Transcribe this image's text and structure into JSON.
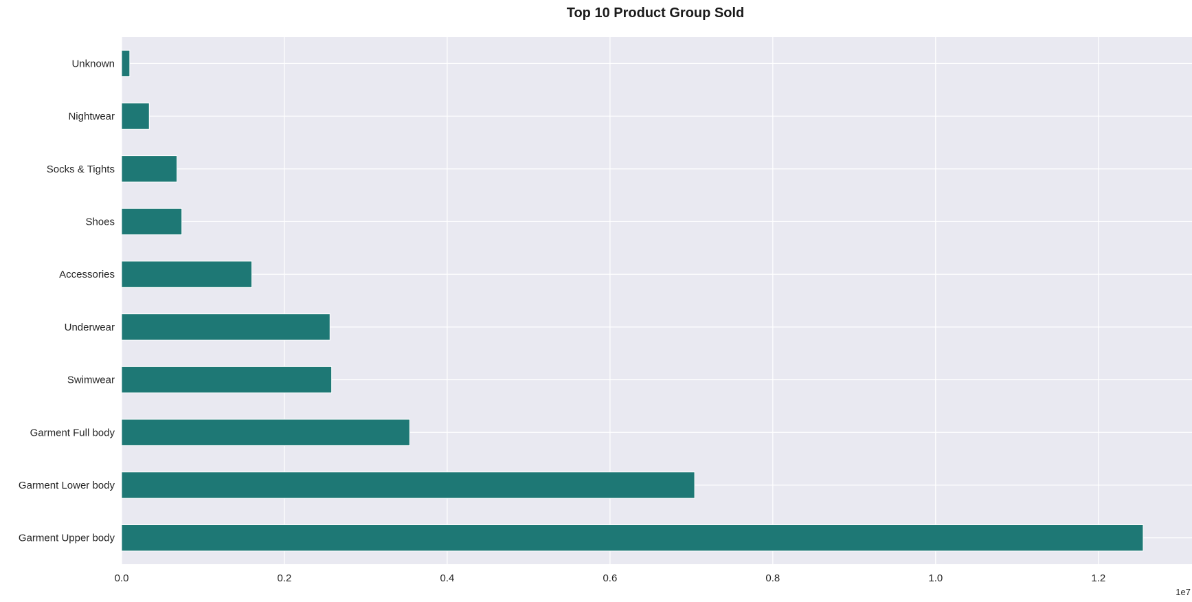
{
  "chart_data": {
    "type": "bar",
    "orientation": "horizontal",
    "title": "Top 10 Product Group Sold",
    "xlabel": "",
    "ylabel": "",
    "x_offset_label": "1e7",
    "x_scale": 10000000,
    "xlim": [
      0,
      13150000
    ],
    "x_ticks": [
      0,
      2000000,
      4000000,
      6000000,
      8000000,
      10000000,
      12000000
    ],
    "x_tick_labels": [
      "0.0",
      "0.2",
      "0.4",
      "0.6",
      "0.8",
      "1.0",
      "1.2"
    ],
    "grid": true,
    "categories": [
      "Garment Upper body",
      "Garment Lower body",
      "Garment Full body",
      "Swimwear",
      "Underwear",
      "Accessories",
      "Shoes",
      "Socks & Tights",
      "Nightwear",
      "Unknown"
    ],
    "values": [
      12550000,
      7040000,
      3540000,
      2580000,
      2560000,
      1600000,
      740000,
      680000,
      340000,
      100000
    ],
    "colors": {
      "bar": "#1e7875",
      "plot_background": "#e9e9f1",
      "grid": "#ffffff"
    }
  }
}
